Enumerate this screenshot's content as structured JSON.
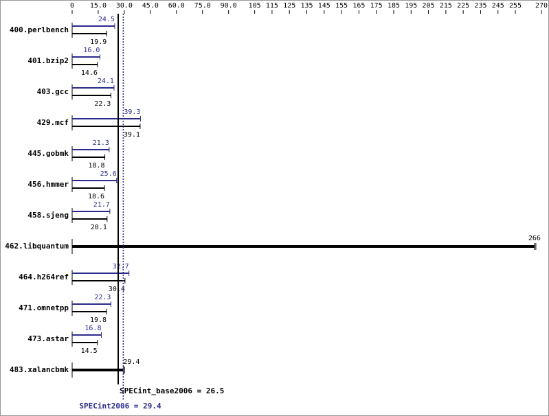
{
  "chart_data": {
    "type": "bar",
    "orientation": "horizontal",
    "categories": [
      "400.perlbench",
      "401.bzip2",
      "403.gcc",
      "429.mcf",
      "445.gobmk",
      "456.hmmer",
      "458.sjeng",
      "462.libquantum",
      "464.h264ref",
      "471.omnetpp",
      "473.astar",
      "483.xalancbmk"
    ],
    "series": [
      {
        "color": "#2a2a8c",
        "values": [
          24.5,
          16.0,
          24.1,
          39.3,
          21.3,
          25.6,
          21.7,
          null,
          32.7,
          22.3,
          16.8,
          null
        ],
        "value_labels": [
          "24.5",
          "16.0",
          "24.1",
          "39.3",
          "21.3",
          "25.6",
          "21.7",
          null,
          "32.7",
          "22.3",
          "16.8",
          null
        ]
      },
      {
        "color": "#000000",
        "values": [
          19.9,
          14.6,
          22.3,
          39.1,
          18.8,
          18.6,
          20.1,
          266,
          30.4,
          19.8,
          14.5,
          29.4
        ]
      }
    ],
    "xlim": [
      0,
      270
    ],
    "xticks": [
      0,
      {
        "value": 15,
        "label": "15.0"
      },
      {
        "value": 30,
        "label": "30.0"
      },
      {
        "value": 45,
        "label": "45.0"
      },
      {
        "value": 60,
        "label": "60.0"
      },
      {
        "value": 75,
        "label": "75.0"
      },
      {
        "value": 90,
        "label": "90.0"
      },
      105,
      115,
      125,
      135,
      145,
      155,
      165,
      175,
      185,
      195,
      205,
      215,
      225,
      235,
      245,
      255,
      270
    ],
    "reference_lines": [
      {
        "value": 26.5,
        "label": "SPECint_base2006 = 26.5",
        "color": "#000000",
        "dashed": false
      },
      {
        "value": 29.4,
        "label": "SPECint2006 = 29.4",
        "color": "#2a2a8c",
        "dashed": true
      }
    ]
  }
}
